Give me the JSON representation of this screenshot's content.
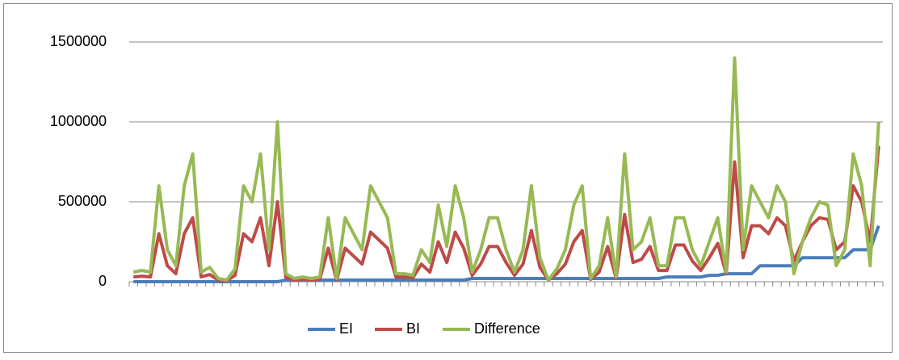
{
  "chart_data": {
    "type": "line",
    "categories": [
      null,
      null,
      null,
      null,
      null,
      null,
      null,
      null,
      null,
      null,
      null,
      null,
      null,
      null,
      null,
      null,
      null,
      null,
      null,
      null,
      null,
      null,
      null,
      null,
      null,
      null,
      null,
      null,
      null,
      null,
      null,
      null,
      null,
      null,
      null,
      null,
      null,
      null,
      null,
      null,
      null,
      null,
      null,
      null,
      null,
      null,
      null,
      null,
      null,
      null,
      null,
      null,
      null,
      null,
      null,
      null,
      null,
      null,
      null,
      null,
      null,
      null,
      null,
      null,
      null,
      null,
      null,
      null,
      null,
      null,
      null,
      null,
      null,
      null,
      null,
      null,
      null,
      null,
      null,
      null,
      null,
      null,
      null,
      null,
      null,
      null,
      null,
      null,
      null
    ],
    "ylim": [
      0,
      1500000
    ],
    "yticks": [
      0,
      500000,
      1000000,
      1500000
    ],
    "grid": true,
    "legend": "bottom",
    "series": [
      {
        "name": "EI",
        "color": "#4a7ebb",
        "values": [
          0,
          0,
          0,
          0,
          0,
          0,
          0,
          0,
          0,
          0,
          0,
          0,
          0,
          0,
          0,
          0,
          0,
          0,
          10000,
          10000,
          10000,
          10000,
          10000,
          10000,
          10000,
          10000,
          10000,
          10000,
          10000,
          10000,
          10000,
          10000,
          10000,
          10000,
          10000,
          10000,
          10000,
          10000,
          10000,
          10000,
          20000,
          20000,
          20000,
          20000,
          20000,
          20000,
          20000,
          20000,
          20000,
          20000,
          20000,
          20000,
          20000,
          20000,
          20000,
          20000,
          20000,
          20000,
          20000,
          20000,
          20000,
          20000,
          20000,
          30000,
          30000,
          30000,
          30000,
          30000,
          40000,
          40000,
          50000,
          50000,
          50000,
          50000,
          100000,
          100000,
          100000,
          100000,
          100000,
          150000,
          150000,
          150000,
          150000,
          150000,
          150000,
          200000,
          200000,
          200000,
          350000
        ]
      },
      {
        "name": "BI",
        "color": "#be4b48",
        "values": [
          30000,
          35000,
          30000,
          300000,
          100000,
          50000,
          300000,
          400000,
          30000,
          45000,
          10000,
          5000,
          40000,
          300000,
          250000,
          400000,
          100000,
          500000,
          25000,
          10000,
          15000,
          10000,
          15000,
          210000,
          10000,
          210000,
          160000,
          110000,
          310000,
          260000,
          210000,
          30000,
          30000,
          25000,
          110000,
          60000,
          250000,
          120000,
          310000,
          210000,
          40000,
          110000,
          220000,
          220000,
          120000,
          40000,
          110000,
          320000,
          90000,
          10000,
          50000,
          110000,
          250000,
          320000,
          15000,
          60000,
          220000,
          20000,
          420000,
          120000,
          140000,
          220000,
          70000,
          70000,
          230000,
          230000,
          130000,
          70000,
          150000,
          240000,
          50000,
          750000,
          150000,
          350000,
          350000,
          300000,
          400000,
          350000,
          130000,
          250000,
          350000,
          400000,
          390000,
          200000,
          250000,
          600000,
          500000,
          250000,
          850000
        ]
      },
      {
        "name": "Difference",
        "color": "#98b954",
        "values": [
          60000,
          70000,
          60000,
          600000,
          200000,
          100000,
          600000,
          800000,
          60000,
          90000,
          20000,
          10000,
          80000,
          600000,
          500000,
          800000,
          200000,
          1000000,
          50000,
          20000,
          30000,
          20000,
          30000,
          400000,
          20000,
          400000,
          300000,
          200000,
          600000,
          500000,
          400000,
          50000,
          50000,
          40000,
          200000,
          120000,
          480000,
          220000,
          600000,
          400000,
          60000,
          200000,
          400000,
          400000,
          200000,
          60000,
          200000,
          600000,
          150000,
          10000,
          80000,
          200000,
          480000,
          600000,
          20000,
          100000,
          400000,
          30000,
          800000,
          200000,
          250000,
          400000,
          100000,
          100000,
          400000,
          400000,
          200000,
          100000,
          250000,
          400000,
          60000,
          1400000,
          200000,
          600000,
          500000,
          400000,
          600000,
          500000,
          50000,
          250000,
          400000,
          500000,
          480000,
          100000,
          200000,
          800000,
          600000,
          100000,
          1000000
        ]
      }
    ]
  }
}
